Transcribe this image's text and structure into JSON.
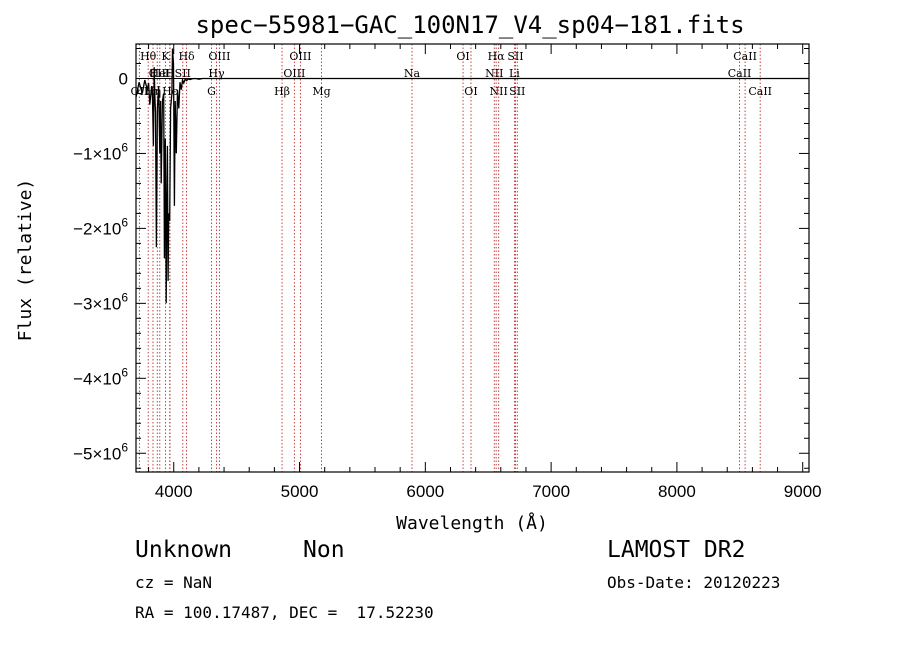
{
  "chart_data": {
    "type": "line",
    "title": "spec−55981−GAC_100N17_V4_sp04−181.fits",
    "xlabel": "Wavelength (Å)",
    "ylabel": "Flux (relative)",
    "xlim": [
      3700,
      9050
    ],
    "ylim": [
      -5250000,
      460000
    ],
    "x_ticks": [
      {
        "value": 4000,
        "label": "4000"
      },
      {
        "value": 5000,
        "label": "5000"
      },
      {
        "value": 6000,
        "label": "6000"
      },
      {
        "value": 7000,
        "label": "7000"
      },
      {
        "value": 8000,
        "label": "8000"
      },
      {
        "value": 9000,
        "label": "9000"
      }
    ],
    "y_ticks": [
      {
        "value": 0,
        "base": "0",
        "exp": ""
      },
      {
        "value": -1000000,
        "base": "−1×10",
        "exp": "6"
      },
      {
        "value": -2000000,
        "base": "−2×10",
        "exp": "6"
      },
      {
        "value": -3000000,
        "base": "−3×10",
        "exp": "6"
      },
      {
        "value": -4000000,
        "base": "−4×10",
        "exp": "6"
      },
      {
        "value": -5000000,
        "base": "−5×10",
        "exp": "6"
      }
    ],
    "grid": false,
    "zero_line": true,
    "series": [
      {
        "color": "#000000",
        "x": [
          3700,
          3725,
          3750,
          3770,
          3790,
          3800,
          3810,
          3825,
          3830,
          3838,
          3845,
          3850,
          3855,
          3862,
          3870,
          3880,
          3889,
          3895,
          3900,
          3910,
          3920,
          3926,
          3933,
          3940,
          3945,
          3950,
          3955,
          3960,
          3968,
          3975,
          3985,
          3990,
          3998,
          4005,
          4012,
          4020,
          4030,
          4040,
          4050,
          4060,
          4070,
          4080,
          4090,
          4102,
          4115,
          4130,
          4150,
          4175,
          4200,
          4230,
          4260,
          4300,
          4400,
          4600,
          4800,
          5000,
          5500,
          6000,
          6500,
          7000,
          7500,
          8000,
          8500,
          9050
        ],
        "y": [
          -250000,
          -50000,
          -200000,
          -20000,
          -150000,
          -60000,
          -350000,
          -100000,
          -200000,
          -900000,
          150000,
          -250000,
          -450000,
          -2250000,
          -400000,
          -100000,
          -1000000,
          -300000,
          -1400000,
          -300000,
          -200000,
          -2400000,
          -800000,
          -3000000,
          -1700000,
          -900000,
          -2700000,
          -1800000,
          -1900000,
          -400000,
          -200000,
          400000,
          200000,
          -1700000,
          -300000,
          -1000000,
          -150000,
          -400000,
          -50000,
          -150000,
          -20000,
          -60000,
          -10000,
          -30000,
          -5000,
          -15000,
          -3000,
          0,
          -10000,
          0,
          0,
          0,
          0,
          0,
          0,
          0,
          0,
          0,
          0,
          0,
          0,
          0,
          0,
          0
        ]
      }
    ],
    "lines": [
      {
        "x": 3727,
        "label": "OII",
        "row": 2
      },
      {
        "x": 3797,
        "label": "Hθ",
        "row": 0
      },
      {
        "x": 3835,
        "label": "Hη",
        "row": 2
      },
      {
        "x": 3869,
        "label": "CII",
        "row": 1
      },
      {
        "x": 3889,
        "label": "HeI",
        "row": 1
      },
      {
        "x": 3934,
        "label": "K",
        "row": 0
      },
      {
        "x": 3970,
        "label": "Hϵ",
        "row": 2
      },
      {
        "x": 3968,
        "label": "H",
        "row": 1
      },
      {
        "x": 4072,
        "label": "SII",
        "row": 1
      },
      {
        "x": 4102,
        "label": "Hδ",
        "row": 0
      },
      {
        "x": 4300,
        "label": "G",
        "row": 2
      },
      {
        "x": 4340,
        "label": "Hγ",
        "row": 1
      },
      {
        "x": 4363,
        "label": "OIII",
        "row": 0
      },
      {
        "x": 4861,
        "label": "Hβ",
        "row": 2
      },
      {
        "x": 4959,
        "label": "OIII",
        "row": 1
      },
      {
        "x": 5007,
        "label": "OIII",
        "row": 0
      },
      {
        "x": 5175,
        "label": "Mg",
        "row": 2
      },
      {
        "x": 5894,
        "label": "Na",
        "row": 1
      },
      {
        "x": 6300,
        "label": "OI",
        "row": 0
      },
      {
        "x": 6363,
        "label": "OI",
        "row": 2
      },
      {
        "x": 6548,
        "label": "NII",
        "row": 1
      },
      {
        "x": 6563,
        "label": "Hα",
        "row": 0
      },
      {
        "x": 6583,
        "label": "NII",
        "row": 2
      },
      {
        "x": 6708,
        "label": "Li",
        "row": 1
      },
      {
        "x": 6717,
        "label": "SII",
        "row": 0
      },
      {
        "x": 6731,
        "label": "SII",
        "row": 2
      },
      {
        "x": 8498,
        "label": "CaII",
        "row": 1
      },
      {
        "x": 8542,
        "label": "CaII",
        "row": 0
      },
      {
        "x": 8662,
        "label": "CaII",
        "row": 2
      }
    ],
    "line_color": "#c03030"
  },
  "info": {
    "object_class": "Unknown",
    "object_subclass": "Non",
    "survey": "LAMOST DR2",
    "cz": "cz = NaN",
    "obs_date": "Obs-Date: 20120223",
    "coords": "RA = 100.17487, DEC =  17.52230"
  }
}
